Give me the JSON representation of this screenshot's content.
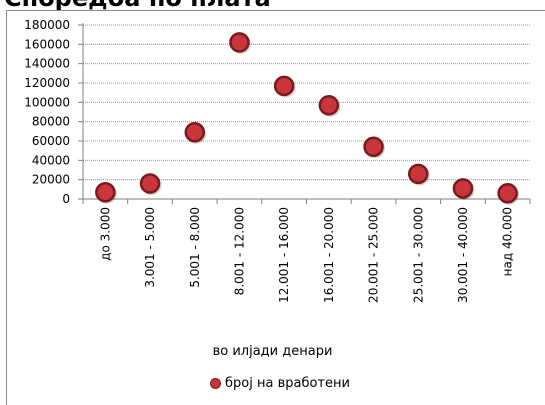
{
  "cut_title": "Споредба по плата",
  "chart_data": {
    "type": "scatter",
    "title": "",
    "xlabel": "во илјади денари",
    "ylabel": "",
    "categories": [
      "до 3.000",
      "3.001 - 5.000",
      "5.001 - 8.000",
      "8.001 - 12.000",
      "12.001 - 16.000",
      "16.001 - 20.000",
      "20.001 - 25.000",
      "25.001 - 30.000",
      "30.001 - 40.000",
      "над 40.000"
    ],
    "series": [
      {
        "name": "број на вработени",
        "values": [
          7000,
          16000,
          69000,
          162000,
          117000,
          97000,
          54000,
          26000,
          11000,
          6000
        ]
      }
    ],
    "yticks": [
      "0",
      "20000",
      "40000",
      "60000",
      "80000",
      "100000",
      "120000",
      "140000",
      "160000",
      "180000"
    ],
    "ylim": [
      0,
      180000
    ],
    "grid": true,
    "legend_position": "bottom"
  },
  "colors": {
    "marker_fill": "#c8363b",
    "marker_edge": "#7a1a1e",
    "grid": "#9a9a9a"
  }
}
